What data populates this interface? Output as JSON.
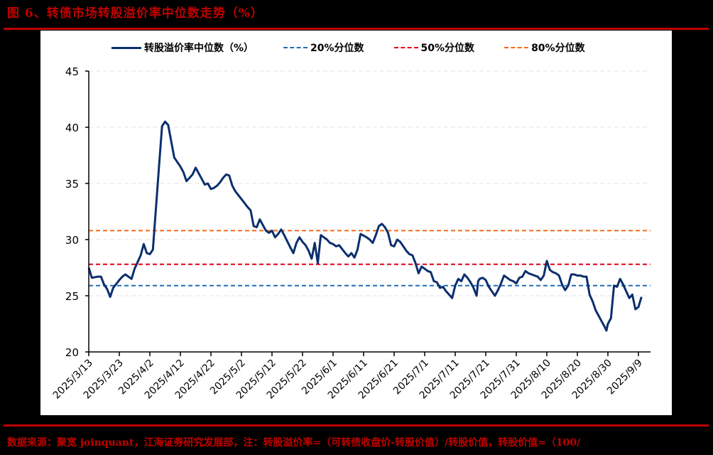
{
  "title": "图 6、转债市场转股溢价率中位数走势（%）",
  "source_note": "数据来源：聚宽 joinquant，江海证券研究发展部，注：转股溢价率=（可转债收盘价-转股价值）/转股价值，转股价值=（100/",
  "legend": [
    {
      "label": "转股溢价率中位数（%）",
      "style": "solid",
      "color": "#0b2f6e"
    },
    {
      "label": "20%分位数",
      "style": "dashed",
      "color": "#1f6fb5"
    },
    {
      "label": "50%分位数",
      "style": "dashed",
      "color": "#e3001b"
    },
    {
      "label": "80%分位数",
      "style": "dashed",
      "color": "#f26a1b"
    }
  ],
  "chart_data": {
    "type": "line",
    "title": "转债市场转股溢价率中位数走势（%）",
    "xlabel": "",
    "ylabel": "",
    "ylim": [
      20,
      45
    ],
    "yticks": [
      20,
      25,
      30,
      35,
      40,
      45
    ],
    "grid": true,
    "legend_position": "top",
    "x_tick_labels": [
      "2025/3/13",
      "2025/3/23",
      "2025/4/2",
      "2025/4/12",
      "2025/4/22",
      "2025/5/2",
      "2025/5/12",
      "2025/5/22",
      "2025/6/1",
      "2025/6/11",
      "2025/6/21",
      "2025/7/1",
      "2025/7/11",
      "2025/7/21",
      "2025/7/31",
      "2025/8/10",
      "2025/8/20",
      "2025/8/30",
      "2025/9/9"
    ],
    "reference_lines": [
      {
        "name": "20%分位数",
        "value": 25.9,
        "color": "#1f6fb5"
      },
      {
        "name": "50%分位数",
        "value": 27.8,
        "color": "#e3001b"
      },
      {
        "name": "80%分位数",
        "value": 30.8,
        "color": "#f26a1b"
      }
    ],
    "series": [
      {
        "name": "转股溢价率中位数（%）",
        "color": "#0b2f6e",
        "points_day_value": [
          [
            0,
            27.5
          ],
          [
            1,
            26.6
          ],
          [
            3,
            26.7
          ],
          [
            4,
            26.7
          ],
          [
            5,
            26.0
          ],
          [
            6,
            25.6
          ],
          [
            7,
            24.9
          ],
          [
            8,
            25.7
          ],
          [
            10,
            26.4
          ],
          [
            11,
            26.7
          ],
          [
            12,
            26.9
          ],
          [
            14,
            26.5
          ],
          [
            15,
            27.4
          ],
          [
            17,
            28.6
          ],
          [
            18,
            29.6
          ],
          [
            19,
            28.8
          ],
          [
            20,
            28.7
          ],
          [
            21,
            29.1
          ],
          [
            22,
            32.8
          ],
          [
            23,
            36.5
          ],
          [
            24,
            40.1
          ],
          [
            25,
            40.5
          ],
          [
            26,
            40.2
          ],
          [
            28,
            37.3
          ],
          [
            30,
            36.5
          ],
          [
            31,
            36.0
          ],
          [
            32,
            35.2
          ],
          [
            33,
            35.5
          ],
          [
            34,
            35.8
          ],
          [
            35,
            36.4
          ],
          [
            37,
            35.4
          ],
          [
            38,
            34.9
          ],
          [
            39,
            35.0
          ],
          [
            40,
            34.5
          ],
          [
            41,
            34.6
          ],
          [
            42,
            34.8
          ],
          [
            43,
            35.1
          ],
          [
            44,
            35.5
          ],
          [
            45,
            35.8
          ],
          [
            46,
            35.7
          ],
          [
            47,
            34.8
          ],
          [
            48,
            34.3
          ],
          [
            50,
            33.6
          ],
          [
            52,
            32.9
          ],
          [
            53,
            32.6
          ],
          [
            54,
            31.2
          ],
          [
            55,
            31.1
          ],
          [
            56,
            31.8
          ],
          [
            57,
            31.3
          ],
          [
            58,
            30.8
          ],
          [
            59,
            30.6
          ],
          [
            60,
            30.8
          ],
          [
            61,
            30.2
          ],
          [
            62,
            30.5
          ],
          [
            63,
            30.9
          ],
          [
            64,
            30.4
          ],
          [
            66,
            29.3
          ],
          [
            67,
            28.8
          ],
          [
            68,
            29.7
          ],
          [
            69,
            30.2
          ],
          [
            70,
            29.8
          ],
          [
            71,
            29.5
          ],
          [
            72,
            29.0
          ],
          [
            73,
            28.3
          ],
          [
            74,
            29.7
          ],
          [
            75,
            27.9
          ],
          [
            76,
            30.4
          ],
          [
            78,
            30.0
          ],
          [
            79,
            29.7
          ],
          [
            80,
            29.6
          ],
          [
            81,
            29.4
          ],
          [
            82,
            29.5
          ],
          [
            84,
            28.8
          ],
          [
            85,
            28.5
          ],
          [
            86,
            28.8
          ],
          [
            87,
            28.4
          ],
          [
            88,
            29.1
          ],
          [
            89,
            30.5
          ],
          [
            91,
            30.2
          ],
          [
            92,
            30.0
          ],
          [
            93,
            29.7
          ],
          [
            94,
            30.4
          ],
          [
            95,
            31.2
          ],
          [
            96,
            31.4
          ],
          [
            97,
            31.1
          ],
          [
            98,
            30.6
          ],
          [
            99,
            29.5
          ],
          [
            100,
            29.4
          ],
          [
            101,
            30.0
          ],
          [
            102,
            29.8
          ],
          [
            103,
            29.4
          ],
          [
            104,
            29.0
          ],
          [
            105,
            28.7
          ],
          [
            106,
            28.6
          ],
          [
            107,
            27.9
          ],
          [
            108,
            27.0
          ],
          [
            109,
            27.6
          ],
          [
            110,
            27.4
          ],
          [
            111,
            27.2
          ],
          [
            112,
            27.1
          ],
          [
            113,
            26.3
          ],
          [
            114,
            26.2
          ],
          [
            115,
            25.7
          ],
          [
            116,
            25.8
          ],
          [
            117,
            25.4
          ],
          [
            118,
            25.1
          ],
          [
            119,
            24.8
          ],
          [
            120,
            25.9
          ],
          [
            121,
            26.5
          ],
          [
            122,
            26.3
          ],
          [
            123,
            26.9
          ],
          [
            124,
            26.6
          ],
          [
            125,
            26.2
          ],
          [
            126,
            25.7
          ],
          [
            127,
            25.0
          ],
          [
            127.5,
            26.3
          ],
          [
            128,
            26.5
          ],
          [
            129,
            26.6
          ],
          [
            130,
            26.4
          ],
          [
            131,
            25.8
          ],
          [
            132,
            25.4
          ],
          [
            133,
            25.0
          ],
          [
            134,
            25.5
          ],
          [
            135,
            26.1
          ],
          [
            136,
            26.8
          ],
          [
            137,
            26.6
          ],
          [
            138,
            26.4
          ],
          [
            139,
            26.3
          ],
          [
            140,
            26.1
          ],
          [
            141,
            26.6
          ],
          [
            142,
            26.7
          ],
          [
            143,
            27.2
          ],
          [
            144,
            27.0
          ],
          [
            145,
            26.9
          ],
          [
            146,
            26.8
          ],
          [
            147,
            26.7
          ],
          [
            148,
            26.4
          ],
          [
            149,
            26.8
          ],
          [
            150,
            28.1
          ],
          [
            151,
            27.3
          ],
          [
            152,
            27.1
          ],
          [
            153,
            27.0
          ],
          [
            154,
            26.8
          ],
          [
            155,
            26.0
          ],
          [
            156,
            25.5
          ],
          [
            157,
            25.9
          ],
          [
            158,
            26.9
          ],
          [
            159,
            26.9
          ],
          [
            160,
            26.8
          ],
          [
            161,
            26.8
          ],
          [
            162,
            26.7
          ],
          [
            163,
            26.7
          ],
          [
            164,
            25.1
          ],
          [
            165,
            24.5
          ],
          [
            166,
            23.7
          ],
          [
            167,
            23.2
          ],
          [
            168,
            22.7
          ],
          [
            169,
            22.2
          ],
          [
            169.5,
            21.9
          ],
          [
            170,
            22.5
          ],
          [
            171,
            23.0
          ],
          [
            172,
            25.9
          ],
          [
            173,
            25.8
          ],
          [
            174,
            26.5
          ],
          [
            175,
            26.0
          ],
          [
            176,
            25.4
          ],
          [
            177,
            24.8
          ],
          [
            178,
            25.1
          ],
          [
            179,
            23.8
          ],
          [
            180,
            24.0
          ],
          [
            181,
            24.9
          ]
        ]
      }
    ]
  }
}
